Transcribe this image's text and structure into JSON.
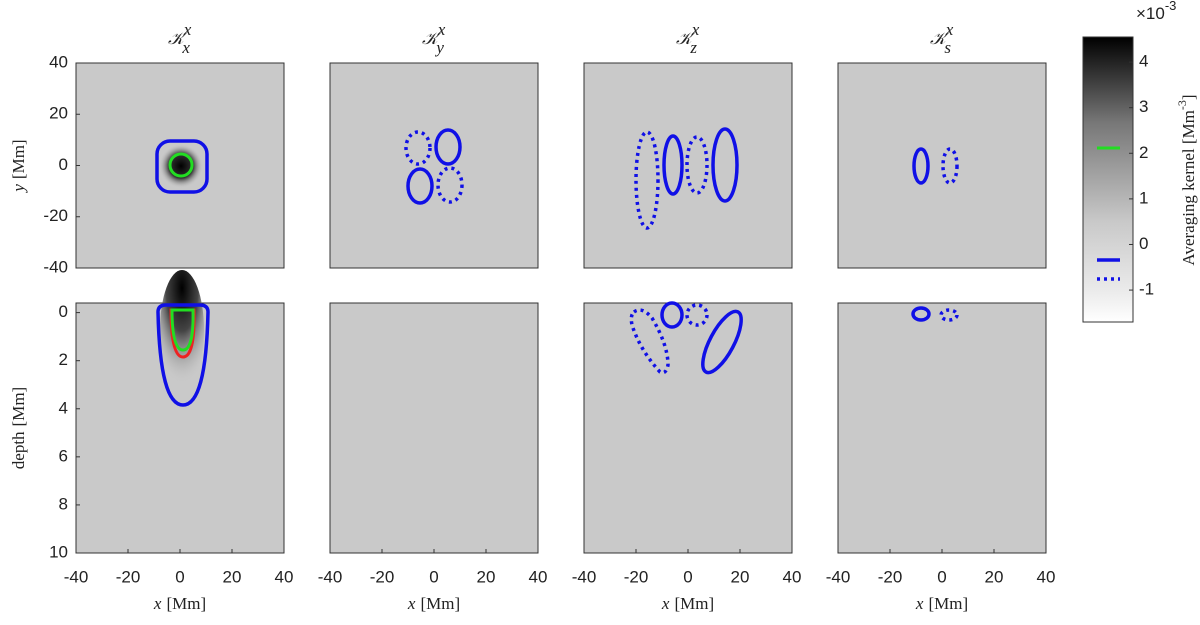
{
  "chart_data": [
    {
      "type": "heatmap",
      "title": "𝒦",
      "title_sub": "x",
      "title_sup": "x",
      "ylabel": "y",
      "ylabel_unit": "[Mm]",
      "xlim": [
        -40,
        40
      ],
      "ylim": [
        -40,
        40
      ],
      "yticks": [
        -40,
        -20,
        0,
        20,
        40
      ]
    },
    {
      "type": "heatmap",
      "title": "𝒦",
      "title_sub": "y",
      "title_sup": "x",
      "xlim": [
        -40,
        40
      ],
      "ylim": [
        -40,
        40
      ]
    },
    {
      "type": "heatmap",
      "title": "𝒦",
      "title_sub": "z",
      "title_sup": "x",
      "xlim": [
        -40,
        40
      ],
      "ylim": [
        -40,
        40
      ]
    },
    {
      "type": "heatmap",
      "title": "𝒦",
      "title_sub": "s",
      "title_sup": "x",
      "xlim": [
        -40,
        40
      ],
      "ylim": [
        -40,
        40
      ]
    },
    {
      "type": "heatmap",
      "ylabel": "depth",
      "ylabel_unit": "[Mm]",
      "xlabel": "x",
      "xlabel_unit": "[Mm]",
      "xlim": [
        -40,
        40
      ],
      "ylim": [
        10,
        -0.4
      ],
      "xticks": [
        -40,
        -20,
        0,
        20,
        40
      ],
      "yticks": [
        0,
        2,
        4,
        6,
        8,
        10
      ]
    },
    {
      "type": "heatmap",
      "xlabel": "x",
      "xlabel_unit": "[Mm]",
      "xlim": [
        -40,
        40
      ],
      "ylim": [
        10,
        -0.4
      ],
      "xticks": [
        -40,
        -20,
        0,
        20,
        40
      ]
    },
    {
      "type": "heatmap",
      "xlabel": "x",
      "xlabel_unit": "[Mm]",
      "xlim": [
        -40,
        40
      ],
      "ylim": [
        10,
        -0.4
      ],
      "xticks": [
        -40,
        -20,
        0,
        20,
        40
      ]
    },
    {
      "type": "heatmap",
      "xlabel": "x",
      "xlabel_unit": "[Mm]",
      "xlim": [
        -40,
        40
      ],
      "ylim": [
        10,
        -0.4
      ],
      "xticks": [
        -40,
        -20,
        0,
        20,
        40
      ]
    }
  ],
  "colorbar": {
    "label": "Averaging kernel [Mm",
    "label_power": "-3",
    "label_end": "]",
    "scale": "×10",
    "scale_power": "-3",
    "ylim": [
      -1.7,
      4.55
    ],
    "yticks": [
      -1,
      0,
      1,
      2,
      3,
      4
    ]
  }
}
